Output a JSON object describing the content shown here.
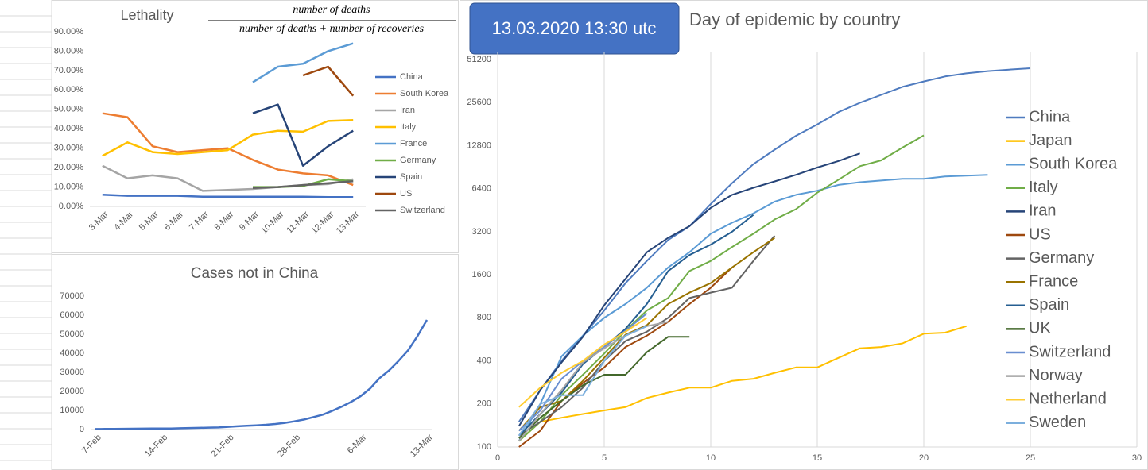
{
  "chart_data": [
    {
      "type": "line",
      "title": "Lethality",
      "formula_numerator": "number of deaths",
      "formula_denominator": "number of deaths + number of recoveries",
      "categories": [
        "3-Mar",
        "4-Mar",
        "5-Mar",
        "6-Mar",
        "7-Mar",
        "8-Mar",
        "9-Mar",
        "10-Mar",
        "11-Mar",
        "12-Mar",
        "13-Mar"
      ],
      "ylim": [
        0,
        90
      ],
      "yticks": [
        {
          "value": 0,
          "label": "0.00%"
        },
        {
          "value": 10,
          "label": "10.00%"
        },
        {
          "value": 20,
          "label": "20.00%"
        },
        {
          "value": 30,
          "label": "30.00%"
        },
        {
          "value": 40,
          "label": "40.00%"
        },
        {
          "value": 50,
          "label": "50.00%"
        },
        {
          "value": 60,
          "label": "60.00%"
        },
        {
          "value": 70,
          "label": "70.00%"
        },
        {
          "value": 80,
          "label": "80.00%"
        },
        {
          "value": 90,
          "label": "90.00%"
        }
      ],
      "legend": "right",
      "series": [
        {
          "name": "China",
          "color": "#4472c4",
          "values": [
            6,
            5.5,
            5.5,
            5.5,
            5,
            5,
            5,
            5,
            5,
            4.8,
            4.8
          ]
        },
        {
          "name": "South Korea",
          "color": "#ed7d31",
          "values": [
            48,
            46,
            31,
            28,
            29,
            30,
            24,
            19,
            17,
            16,
            11
          ]
        },
        {
          "name": "Iran",
          "color": "#a5a5a5",
          "values": [
            21,
            14.5,
            16,
            14.5,
            8,
            8.5,
            9,
            10,
            11,
            11.5,
            14
          ]
        },
        {
          "name": "Italy",
          "color": "#ffc000",
          "values": [
            26,
            33,
            28,
            27,
            28,
            29,
            37,
            39,
            38.5,
            44,
            44.5
          ]
        },
        {
          "name": "France",
          "color": "#5b9bd5",
          "values": [
            null,
            null,
            null,
            null,
            null,
            null,
            64,
            72,
            73.5,
            80,
            84
          ]
        },
        {
          "name": "Germany",
          "color": "#70ad47",
          "values": [
            null,
            null,
            null,
            null,
            null,
            null,
            10,
            10,
            10.5,
            14,
            13
          ]
        },
        {
          "name": "Spain",
          "color": "#264478",
          "values": [
            null,
            null,
            null,
            null,
            null,
            null,
            48,
            52.5,
            21,
            31,
            39
          ]
        },
        {
          "name": "US",
          "color": "#9e480e",
          "values": [
            null,
            null,
            null,
            null,
            null,
            null,
            null,
            null,
            67.5,
            72,
            57
          ]
        },
        {
          "name": "Switzerland",
          "color": "#636363",
          "values": [
            null,
            null,
            null,
            null,
            null,
            null,
            9.5,
            10,
            11,
            12,
            13
          ]
        }
      ]
    },
    {
      "type": "line",
      "title": "Cases not in China",
      "categories": [
        "7-Feb",
        null,
        null,
        null,
        null,
        null,
        null,
        "14-Feb",
        null,
        null,
        null,
        null,
        null,
        null,
        "21-Feb",
        null,
        null,
        null,
        null,
        null,
        null,
        "28-Feb",
        null,
        null,
        null,
        null,
        null,
        null,
        "6-Mar",
        null,
        null,
        null,
        null,
        null,
        null,
        "13-Mar"
      ],
      "ylim": [
        0,
        70000
      ],
      "yticks": [
        0,
        10000,
        20000,
        30000,
        40000,
        50000,
        60000,
        70000
      ],
      "series": [
        {
          "name": null,
          "color": "#4472c4",
          "values": [
            270,
            300,
            320,
            360,
            400,
            440,
            480,
            520,
            560,
            680,
            800,
            880,
            1000,
            1100,
            1400,
            1700,
            2000,
            2200,
            2500,
            2900,
            3500,
            4300,
            5200,
            6500,
            7800,
            9800,
            12000,
            14500,
            17500,
            21500,
            27000,
            31000,
            36000,
            41500,
            49000,
            57500
          ]
        }
      ]
    },
    {
      "type": "line",
      "title": "Day of epidemic by country",
      "annotation": "13.03.2020 13:30 utc",
      "log_scale": true,
      "xgrid": true,
      "legend": "right",
      "xlim": [
        0,
        30
      ],
      "xticks": [
        0,
        5,
        10,
        15,
        20,
        25,
        30
      ],
      "ylim": [
        100,
        51200
      ],
      "yticks": [
        100,
        200,
        400,
        800,
        1600,
        3200,
        6400,
        12800,
        25600,
        51200
      ],
      "series": [
        {
          "name": "China",
          "color": "#4f7bbf",
          "x": [
            1,
            2,
            3,
            4,
            5,
            6,
            7,
            8,
            9,
            10,
            11,
            12,
            13,
            14,
            15,
            16,
            17,
            18,
            19,
            20,
            21,
            22,
            23,
            24,
            25
          ],
          "values": [
            150,
            250,
            400,
            600,
            900,
            1400,
            2000,
            2800,
            3500,
            5000,
            7000,
            9500,
            12000,
            15000,
            18000,
            22000,
            25500,
            29000,
            33000,
            36000,
            39000,
            41000,
            42500,
            43500,
            44500
          ]
        },
        {
          "name": "Japan",
          "color": "#ffc000",
          "x": [
            1,
            2,
            3,
            4,
            5,
            6,
            7,
            8,
            9,
            10,
            11,
            12,
            13,
            14,
            15,
            16,
            17,
            18,
            19,
            20,
            21,
            22
          ],
          "values": [
            110,
            150,
            160,
            170,
            180,
            190,
            220,
            240,
            260,
            260,
            290,
            300,
            330,
            360,
            360,
            420,
            490,
            500,
            530,
            620,
            630,
            700
          ]
        },
        {
          "name": "South Korea",
          "color": "#5b9bd5",
          "x": [
            1,
            2,
            3,
            4,
            5,
            6,
            7,
            8,
            9,
            10,
            11,
            12,
            13,
            14,
            15,
            16,
            17,
            18,
            19,
            20,
            21,
            22,
            23
          ],
          "values": [
            110,
            200,
            430,
            600,
            800,
            1000,
            1300,
            1800,
            2300,
            3100,
            3700,
            4300,
            5200,
            5800,
            6200,
            6800,
            7100,
            7300,
            7500,
            7500,
            7800,
            7900,
            8000
          ]
        },
        {
          "name": "Italy",
          "color": "#70ad47",
          "x": [
            1,
            2,
            3,
            4,
            5,
            6,
            7,
            8,
            9,
            10,
            11,
            12,
            13,
            14,
            15,
            16,
            17,
            18,
            19,
            20
          ],
          "values": [
            110,
            150,
            230,
            320,
            450,
            650,
            900,
            1100,
            1700,
            2000,
            2500,
            3100,
            3900,
            4600,
            6000,
            7400,
            9200,
            10100,
            12400,
            15100
          ]
        },
        {
          "name": "Iran",
          "color": "#264478",
          "x": [
            1,
            2,
            3,
            4,
            5,
            6,
            7,
            8,
            9,
            10,
            11,
            12,
            13,
            14,
            15,
            16,
            17
          ],
          "values": [
            140,
            250,
            390,
            590,
            980,
            1500,
            2300,
            2900,
            3500,
            4700,
            5800,
            6500,
            7200,
            8000,
            9000,
            10000,
            11300
          ]
        },
        {
          "name": "US",
          "color": "#9e480e",
          "x": [
            1,
            2,
            3,
            4,
            5,
            6,
            7,
            8,
            9,
            10,
            11
          ],
          "values": [
            100,
            130,
            210,
            280,
            360,
            500,
            600,
            750,
            1000,
            1300,
            1800
          ]
        },
        {
          "name": "Germany",
          "color": "#636363",
          "x": [
            1,
            2,
            3,
            4,
            5,
            6,
            7,
            8,
            9,
            10,
            11,
            12,
            13
          ],
          "values": [
            120,
            150,
            190,
            260,
            400,
            550,
            640,
            800,
            1100,
            1200,
            1300,
            2000,
            3000
          ]
        },
        {
          "name": "France",
          "color": "#997300",
          "x": [
            1,
            2,
            3,
            4,
            5,
            6,
            7,
            8,
            9,
            10,
            11,
            12,
            13
          ],
          "values": [
            130,
            190,
            210,
            290,
            420,
            610,
            710,
            1000,
            1200,
            1400,
            1800,
            2300,
            2900
          ]
        },
        {
          "name": "Spain",
          "color": "#255e91",
          "x": [
            1,
            2,
            3,
            4,
            5,
            6,
            7,
            8,
            9,
            10,
            11,
            12
          ],
          "values": [
            120,
            170,
            240,
            380,
            500,
            670,
            1000,
            1700,
            2200,
            2600,
            3200,
            4200
          ]
        },
        {
          "name": "UK",
          "color": "#43682b",
          "x": [
            1,
            2,
            3,
            4,
            5,
            6,
            7,
            8,
            9
          ],
          "values": [
            115,
            160,
            210,
            270,
            320,
            320,
            460,
            590,
            590
          ]
        },
        {
          "name": "Switzerland",
          "color": "#698ed0",
          "x": [
            1,
            2,
            3,
            4,
            5,
            6,
            7
          ],
          "values": [
            130,
            180,
            300,
            400,
            500,
            650,
            860
          ]
        },
        {
          "name": "Norway",
          "color": "#a5a5a5",
          "x": [
            1,
            2,
            3,
            4,
            5,
            6,
            7,
            8
          ],
          "values": [
            110,
            170,
            250,
            390,
            490,
            600,
            700,
            750
          ]
        },
        {
          "name": "Netherland",
          "color": "#ffcd33",
          "x": [
            1,
            2,
            3,
            4,
            5,
            6,
            7
          ],
          "values": [
            190,
            260,
            330,
            400,
            520,
            640,
            800
          ]
        },
        {
          "name": "Sweden",
          "color": "#7cafdd",
          "x": [
            1,
            2,
            3,
            4,
            5,
            6,
            7
          ],
          "values": [
            120,
            200,
            230,
            230,
            400,
            600,
            700
          ]
        }
      ]
    }
  ]
}
